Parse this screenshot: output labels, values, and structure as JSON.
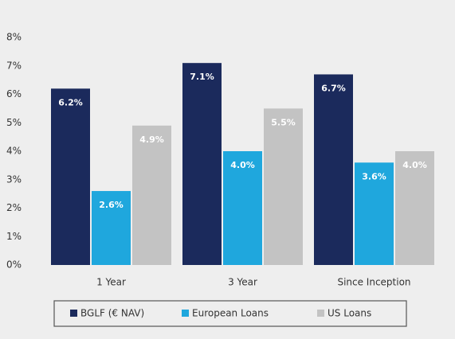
{
  "chart_data": {
    "type": "bar",
    "categories": [
      "1 Year",
      "3 Year",
      "Since Inception"
    ],
    "series": [
      {
        "name": "BGLF (€ NAV)",
        "color": "#1b2a5c",
        "values": [
          6.2,
          7.1,
          6.7
        ],
        "value_labels": [
          "6.2%",
          "7.1%",
          "6.7%"
        ]
      },
      {
        "name": "European Loans",
        "color": "#1fa7dd",
        "values": [
          2.6,
          4.0,
          3.6
        ],
        "value_labels": [
          "2.6%",
          "4.0%",
          "3.6%"
        ]
      },
      {
        "name": "US Loans",
        "color": "#c3c3c3",
        "values": [
          4.9,
          5.5,
          4.0
        ],
        "value_labels": [
          "4.9%",
          "5.5%",
          "4.0%"
        ]
      }
    ],
    "ylim": [
      0,
      8
    ],
    "yticks": [
      {
        "value": 0,
        "label": "0%"
      },
      {
        "value": 1,
        "label": "1%"
      },
      {
        "value": 2,
        "label": "2%"
      },
      {
        "value": 3,
        "label": "3%"
      },
      {
        "value": 4,
        "label": "4%"
      },
      {
        "value": 5,
        "label": "5%"
      },
      {
        "value": 6,
        "label": "6%"
      },
      {
        "value": 7,
        "label": "7%"
      },
      {
        "value": 8,
        "label": "8%"
      }
    ],
    "legend": "bottom"
  }
}
